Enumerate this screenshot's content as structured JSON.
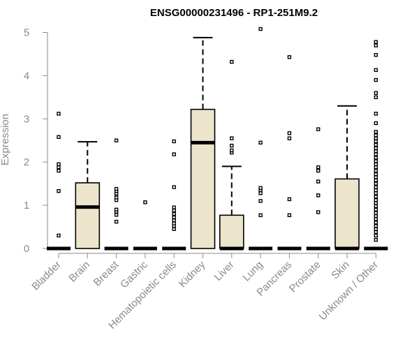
{
  "chart_data": {
    "type": "boxplot",
    "title": "ENSG00000231496 - RP1-251M9.2",
    "xlabel": "",
    "ylabel": "Expression",
    "ylim": [
      0,
      5.15
    ],
    "yticks": [
      0,
      1,
      2,
      3,
      4,
      5
    ],
    "grid": false,
    "categories": [
      "Bladder",
      "Brain",
      "Breast",
      "Gastric",
      "Hematopoietic cells",
      "Kidney",
      "Liver",
      "Lung",
      "Pancreas",
      "Prostate",
      "Skin",
      "Unknown / Other"
    ],
    "series": [
      {
        "q1": 0,
        "median": 0,
        "q3": 0,
        "whisker_low": 0,
        "whisker_high": 0,
        "outliers": [
          0.3,
          1.33,
          1.8,
          1.88,
          1.95,
          2.58,
          3.12
        ]
      },
      {
        "q1": 0,
        "median": 0.96,
        "q3": 1.52,
        "whisker_low": 0,
        "whisker_high": 2.47,
        "outliers": []
      },
      {
        "q1": 0,
        "median": 0,
        "q3": 0,
        "whisker_low": 0,
        "whisker_high": 0,
        "outliers": [
          0.62,
          0.78,
          0.85,
          0.9,
          1.12,
          1.18,
          1.27,
          1.33,
          1.38,
          2.5
        ]
      },
      {
        "q1": 0,
        "median": 0,
        "q3": 0,
        "whisker_low": 0,
        "whisker_high": 0,
        "outliers": [
          1.07
        ]
      },
      {
        "q1": 0,
        "median": 0,
        "q3": 0,
        "whisker_low": 0,
        "whisker_high": 0,
        "outliers": [
          0.45,
          0.52,
          0.58,
          0.65,
          0.72,
          0.8,
          0.88,
          0.95,
          1.42,
          2.18,
          2.48
        ]
      },
      {
        "q1": 0,
        "median": 2.45,
        "q3": 3.22,
        "whisker_low": 0,
        "whisker_high": 4.88,
        "outliers": []
      },
      {
        "q1": 0,
        "median": 0,
        "q3": 0.77,
        "whisker_low": 0,
        "whisker_high": 1.9,
        "outliers": [
          2.22,
          2.27,
          2.38,
          2.55,
          4.32
        ]
      },
      {
        "q1": 0,
        "median": 0,
        "q3": 0,
        "whisker_low": 0,
        "whisker_high": 0,
        "outliers": [
          0.77,
          1.1,
          1.28,
          1.35,
          1.4,
          2.45,
          5.08
        ]
      },
      {
        "q1": 0,
        "median": 0,
        "q3": 0,
        "whisker_low": 0,
        "whisker_high": 0,
        "outliers": [
          0.77,
          1.14,
          2.55,
          2.67,
          4.43
        ]
      },
      {
        "q1": 0,
        "median": 0,
        "q3": 0,
        "whisker_low": 0,
        "whisker_high": 0,
        "outliers": [
          0.84,
          1.23,
          1.55,
          1.8,
          1.88,
          2.76
        ]
      },
      {
        "q1": 0,
        "median": 0,
        "q3": 1.61,
        "whisker_low": 0,
        "whisker_high": 3.3,
        "outliers": []
      },
      {
        "q1": 0,
        "median": 0,
        "q3": 0,
        "whisker_low": 0,
        "whisker_high": 0,
        "outliers": [
          0.2,
          0.3,
          0.38,
          0.45,
          0.52,
          0.6,
          0.68,
          0.75,
          0.82,
          0.9,
          0.98,
          1.05,
          1.12,
          1.2,
          1.28,
          1.35,
          1.42,
          1.5,
          1.58,
          1.65,
          1.72,
          1.8,
          1.88,
          1.95,
          2.02,
          2.1,
          2.18,
          2.25,
          2.32,
          2.4,
          2.48,
          2.55,
          2.62,
          2.7,
          2.9,
          3.12,
          3.5,
          3.6,
          3.9,
          4.13,
          4.48,
          4.7,
          4.78
        ]
      }
    ]
  }
}
